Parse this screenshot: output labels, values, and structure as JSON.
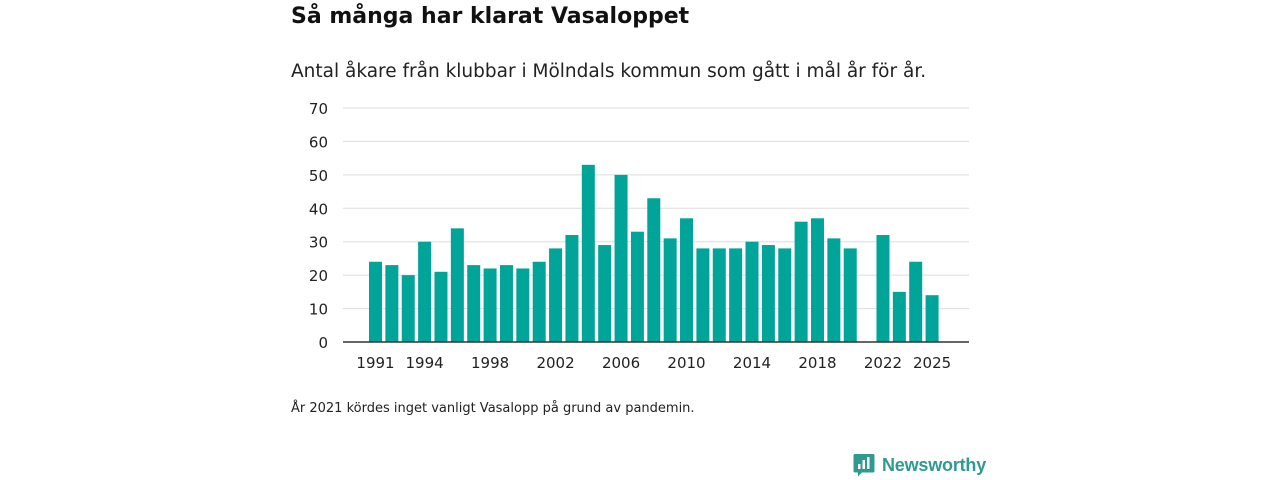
{
  "title": "Så många har klarat Vasaloppet",
  "subtitle": "Antal åkare från klubbar i Mölndals kommun som gått i mål år för år.",
  "note": "År 2021 kördes inget vanligt Vasalopp på grund av pandemin.",
  "brand": {
    "name": "Newsworthy",
    "icon": "newsworthy-logo-icon"
  },
  "colors": {
    "bar": "#00a499",
    "grid": "#dddddd",
    "axis": "#333333",
    "brand": "#2f9a92"
  },
  "chart_data": {
    "type": "bar",
    "title": "Så många har klarat Vasaloppet",
    "xlabel": "",
    "ylabel": "",
    "ylim": [
      0,
      70
    ],
    "yticks": [
      0,
      10,
      20,
      30,
      40,
      50,
      60,
      70
    ],
    "xticks": [
      "1991",
      "1994",
      "1998",
      "2002",
      "2006",
      "2010",
      "2014",
      "2018",
      "2022",
      "2025"
    ],
    "categories": [
      "1991",
      "1992",
      "1993",
      "1994",
      "1995",
      "1996",
      "1997",
      "1998",
      "1999",
      "2000",
      "2001",
      "2002",
      "2003",
      "2004",
      "2005",
      "2006",
      "2007",
      "2008",
      "2009",
      "2010",
      "2011",
      "2012",
      "2013",
      "2014",
      "2015",
      "2016",
      "2017",
      "2018",
      "2019",
      "2020",
      "2021",
      "2022",
      "2023",
      "2024",
      "2025"
    ],
    "values": [
      24,
      23,
      20,
      30,
      21,
      34,
      23,
      22,
      23,
      22,
      24,
      28,
      32,
      53,
      29,
      50,
      33,
      43,
      31,
      37,
      28,
      28,
      28,
      30,
      29,
      28,
      36,
      37,
      31,
      28,
      null,
      32,
      15,
      24,
      14
    ],
    "grid": true
  }
}
